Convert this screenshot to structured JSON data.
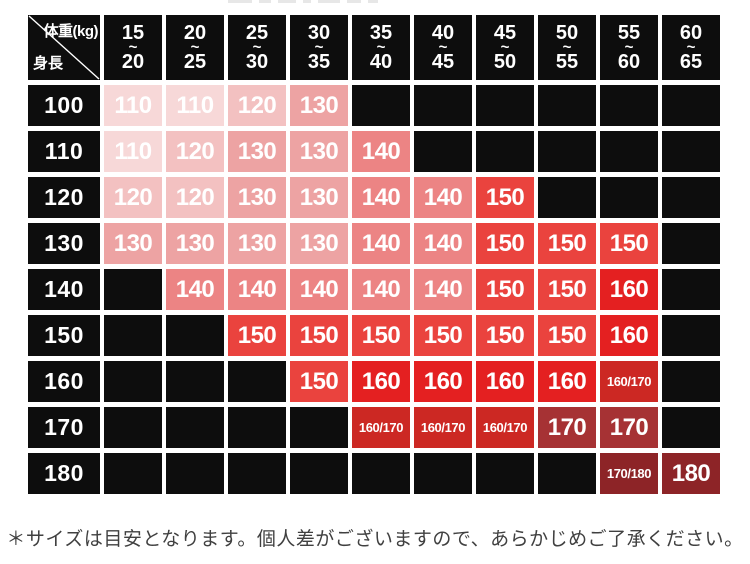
{
  "chart_data": {
    "type": "table",
    "corner": {
      "weight_label": "体重(kg)",
      "height_label": "身長"
    },
    "tilde": "~",
    "columns": [
      {
        "from": "15",
        "to": "20"
      },
      {
        "from": "20",
        "to": "25"
      },
      {
        "from": "25",
        "to": "30"
      },
      {
        "from": "30",
        "to": "35"
      },
      {
        "from": "35",
        "to": "40"
      },
      {
        "from": "40",
        "to": "45"
      },
      {
        "from": "45",
        "to": "50"
      },
      {
        "from": "50",
        "to": "55"
      },
      {
        "from": "55",
        "to": "60"
      },
      {
        "from": "60",
        "to": "65"
      }
    ],
    "row_labels": [
      "100",
      "110",
      "120",
      "130",
      "140",
      "150",
      "160",
      "170",
      "180"
    ],
    "cells": [
      [
        "110",
        "110",
        "120",
        "130",
        null,
        null,
        null,
        null,
        null,
        null
      ],
      [
        "110",
        "120",
        "130",
        "130",
        "140",
        null,
        null,
        null,
        null,
        null
      ],
      [
        "120",
        "120",
        "130",
        "130",
        "140",
        "140",
        "150",
        null,
        null,
        null
      ],
      [
        "130",
        "130",
        "130",
        "130",
        "140",
        "140",
        "150",
        "150",
        "150",
        null
      ],
      [
        null,
        "140",
        "140",
        "140",
        "140",
        "140",
        "150",
        "150",
        "160",
        null
      ],
      [
        null,
        null,
        "150",
        "150",
        "150",
        "150",
        "150",
        "150",
        "160",
        null
      ],
      [
        null,
        null,
        null,
        "150",
        "160",
        "160",
        "160",
        "160",
        "160/170",
        null
      ],
      [
        null,
        null,
        null,
        null,
        "160/170",
        "160/170",
        "160/170",
        "170",
        "170",
        null
      ],
      [
        null,
        null,
        null,
        null,
        null,
        null,
        null,
        null,
        "170/180",
        "180"
      ]
    ],
    "value_colors": {
      "110": "#f7d8d8",
      "120": "#f3c1c1",
      "130": "#eda3a3",
      "140": "#ec8484",
      "150": "#ea433e",
      "160": "#e42021",
      "160/170": "#cc2823",
      "170": "#a63234",
      "170/180": "#8d2427",
      "180": "#8d2427"
    },
    "empty_color": "#0d0d0d",
    "note": "＊サイズは目安となります。個人差がございますので、あらかじめご了承ください。"
  }
}
